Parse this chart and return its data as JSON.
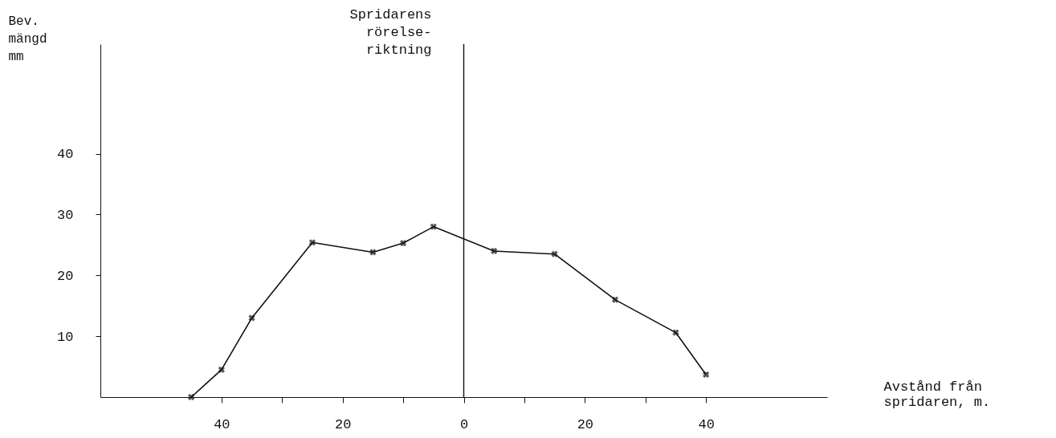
{
  "chart_data": {
    "type": "line",
    "xlabel": "Avstånd från\nspridaren, m.",
    "ylabel": "Bev.\nmängd\nmm",
    "x": [
      -45,
      -40,
      -35,
      -25,
      -15,
      -10,
      -5,
      5,
      15,
      25,
      35,
      40
    ],
    "series": [
      {
        "color": "#111111",
        "values": [
          0,
          4.5,
          13,
          25.4,
          23.8,
          25.3,
          28,
          24,
          23.5,
          16,
          10.6,
          3.7
        ]
      }
    ],
    "xlim": [
      -60,
      60
    ],
    "xticks": [
      {
        "value": -40,
        "label": "40"
      },
      {
        "value": -30,
        "label": null
      },
      {
        "value": -20,
        "label": "20"
      },
      {
        "value": -10,
        "label": null
      },
      0,
      {
        "value": 10,
        "label": null
      },
      20,
      {
        "value": 30,
        "label": null
      },
      40
    ],
    "ylim": [
      0,
      58
    ],
    "yticks": [
      10,
      20,
      30,
      40
    ],
    "ref_lines": [
      {
        "axis": "x",
        "value": 0,
        "label": "Spridarens\nrörelse-\nriktning",
        "color": "#111111"
      }
    ],
    "marker": "cross",
    "line_style": "solid",
    "grid": false
  }
}
